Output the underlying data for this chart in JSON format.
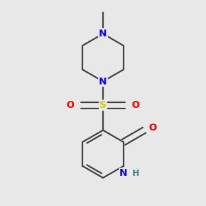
{
  "background_color": "#e8e8e8",
  "bond_color": "#404040",
  "bond_lw": 1.6,
  "atom_colors": {
    "N": "#0000ee",
    "O": "#ee0000",
    "S": "#cccc00",
    "C": "#303030",
    "H": "#408080"
  },
  "dbo": 0.055,
  "figsize": [
    3.0,
    3.0
  ],
  "dpi": 100,
  "xlim": [
    -1.5,
    1.5
  ],
  "ylim": [
    -1.8,
    1.8
  ]
}
